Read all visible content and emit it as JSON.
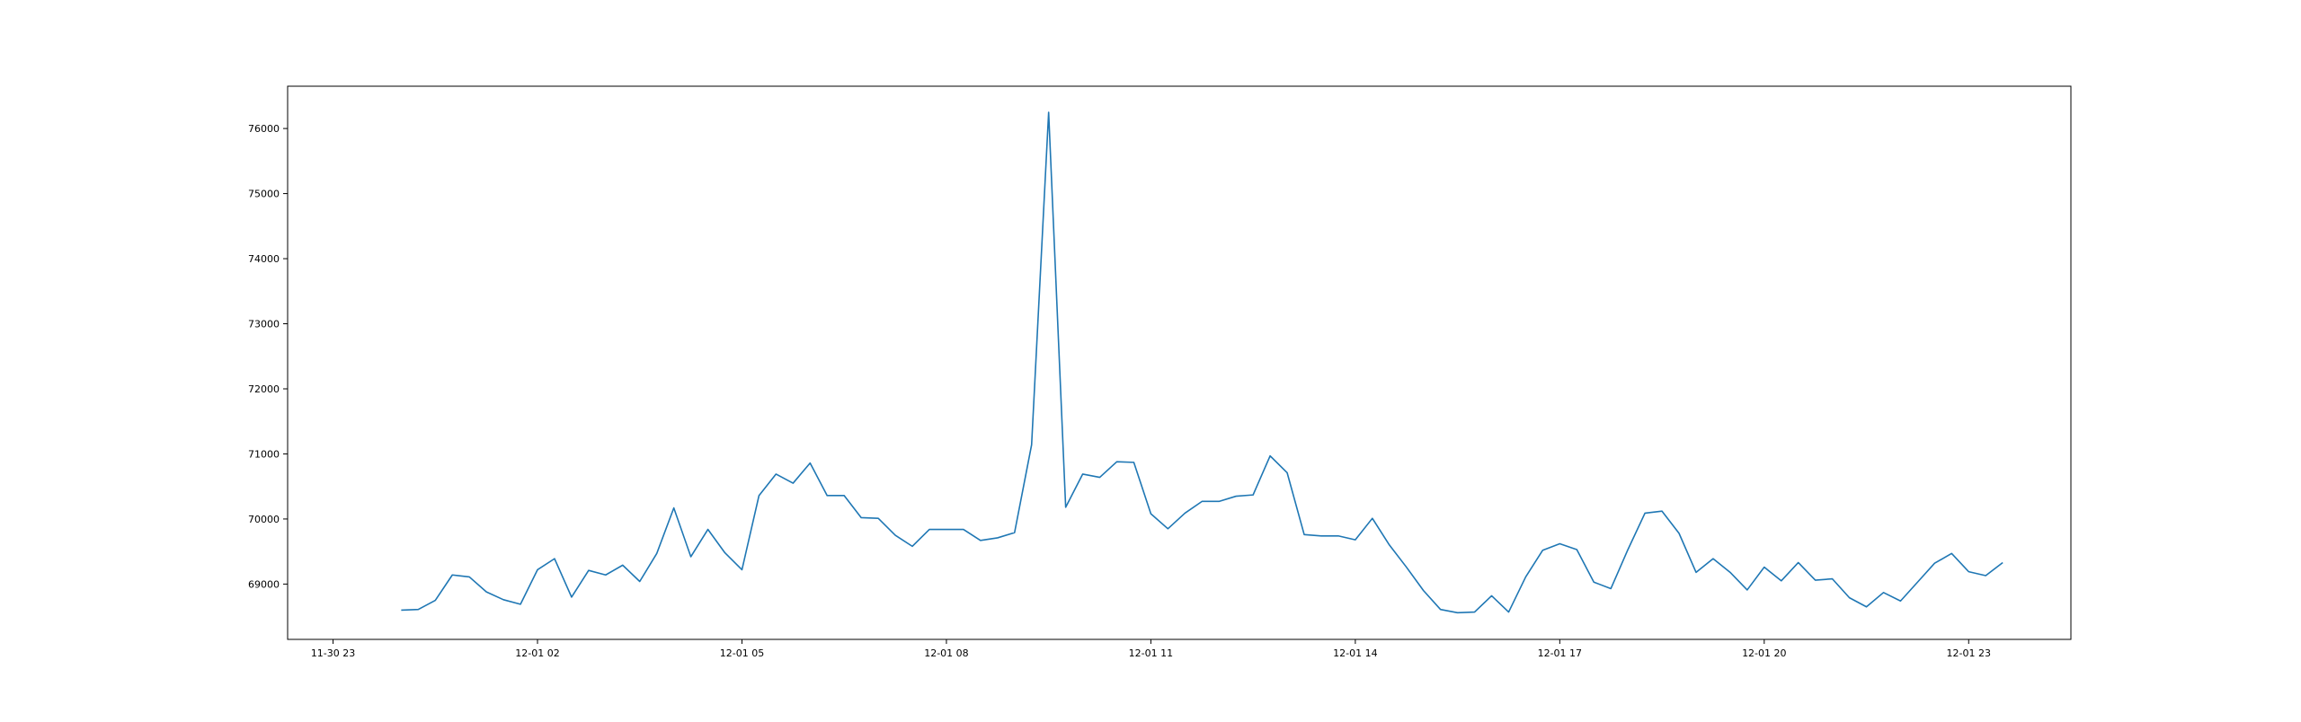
{
  "chart_data": {
    "type": "line",
    "title": "",
    "xlabel": "",
    "ylabel": "",
    "x_tick_labels": [
      "11-30 23",
      "12-01 02",
      "12-01 05",
      "12-01 08",
      "12-01 11",
      "12-01 14",
      "12-01 17",
      "12-01 20",
      "12-01 23"
    ],
    "y_ticks": [
      69000,
      70000,
      71000,
      72000,
      73000,
      74000,
      75000,
      76000
    ],
    "xlim": [
      "2023-11-30 22:20",
      "2023-12-02 00:30"
    ],
    "ylim": [
      68150,
      76650
    ],
    "grid": false,
    "series": [
      {
        "color": "#1f77b4",
        "x": [
          "2023-12-01 00:00",
          "2023-12-01 00:15",
          "2023-12-01 00:30",
          "2023-12-01 00:45",
          "2023-12-01 01:00",
          "2023-12-01 01:15",
          "2023-12-01 01:30",
          "2023-12-01 01:45",
          "2023-12-01 02:00",
          "2023-12-01 02:15",
          "2023-12-01 02:30",
          "2023-12-01 02:45",
          "2023-12-01 03:00",
          "2023-12-01 03:15",
          "2023-12-01 03:30",
          "2023-12-01 03:45",
          "2023-12-01 04:00",
          "2023-12-01 04:15",
          "2023-12-01 04:30",
          "2023-12-01 04:45",
          "2023-12-01 05:00",
          "2023-12-01 05:15",
          "2023-12-01 05:30",
          "2023-12-01 05:45",
          "2023-12-01 06:00",
          "2023-12-01 06:15",
          "2023-12-01 06:30",
          "2023-12-01 06:45",
          "2023-12-01 07:00",
          "2023-12-01 07:15",
          "2023-12-01 07:30",
          "2023-12-01 07:45",
          "2023-12-01 08:00",
          "2023-12-01 08:15",
          "2023-12-01 08:30",
          "2023-12-01 08:45",
          "2023-12-01 09:00",
          "2023-12-01 09:15",
          "2023-12-01 09:30",
          "2023-12-01 09:45",
          "2023-12-01 10:00",
          "2023-12-01 10:15",
          "2023-12-01 10:30",
          "2023-12-01 10:45",
          "2023-12-01 11:00",
          "2023-12-01 11:15",
          "2023-12-01 11:30",
          "2023-12-01 11:45",
          "2023-12-01 12:00",
          "2023-12-01 12:15",
          "2023-12-01 12:30",
          "2023-12-01 12:45",
          "2023-12-01 13:00",
          "2023-12-01 13:15",
          "2023-12-01 13:30",
          "2023-12-01 13:45",
          "2023-12-01 14:00",
          "2023-12-01 14:15",
          "2023-12-01 14:30",
          "2023-12-01 14:45",
          "2023-12-01 15:00",
          "2023-12-01 15:15",
          "2023-12-01 15:30",
          "2023-12-01 15:45",
          "2023-12-01 16:00",
          "2023-12-01 16:15",
          "2023-12-01 16:30",
          "2023-12-01 16:45",
          "2023-12-01 17:00",
          "2023-12-01 17:15",
          "2023-12-01 17:30",
          "2023-12-01 17:45",
          "2023-12-01 18:00",
          "2023-12-01 18:15",
          "2023-12-01 18:30",
          "2023-12-01 18:45",
          "2023-12-01 19:00",
          "2023-12-01 19:15",
          "2023-12-01 19:30",
          "2023-12-01 19:45",
          "2023-12-01 20:00",
          "2023-12-01 20:15",
          "2023-12-01 20:30",
          "2023-12-01 20:45",
          "2023-12-01 21:00",
          "2023-12-01 21:15",
          "2023-12-01 21:30",
          "2023-12-01 21:45",
          "2023-12-01 22:00",
          "2023-12-01 22:15",
          "2023-12-01 22:30",
          "2023-12-01 22:45",
          "2023-12-01 23:00",
          "2023-12-01 23:15",
          "2023-12-01 23:30"
        ],
        "y": [
          68600,
          68610,
          68750,
          69140,
          69110,
          68880,
          68760,
          68690,
          69220,
          69390,
          68800,
          69210,
          69140,
          69290,
          69040,
          69470,
          70170,
          69420,
          69840,
          69480,
          69220,
          70360,
          70690,
          70550,
          70860,
          70360,
          70360,
          70020,
          70010,
          69750,
          69580,
          69840,
          69840,
          69840,
          69670,
          69710,
          69790,
          71140,
          76250,
          70180,
          70690,
          70640,
          70880,
          70870,
          70080,
          69850,
          70090,
          70270,
          70270,
          70350,
          70370,
          70970,
          70710,
          69760,
          69740,
          69740,
          69680,
          70010,
          69600,
          69260,
          68900,
          68610,
          68560,
          68570,
          68820,
          68570,
          69110,
          69520,
          69620,
          69530,
          69030,
          68930,
          69530,
          70090,
          70120,
          69780,
          69180,
          69390,
          69180,
          68910,
          69260,
          69050,
          69330,
          69060,
          69080,
          68790,
          68650,
          68870,
          68740,
          69030,
          69320,
          69470,
          69190,
          69130,
          69330
        ]
      }
    ]
  }
}
